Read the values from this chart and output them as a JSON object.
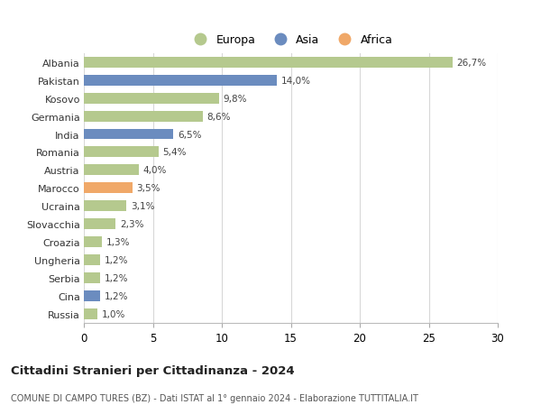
{
  "countries": [
    "Albania",
    "Pakistan",
    "Kosovo",
    "Germania",
    "India",
    "Romania",
    "Austria",
    "Marocco",
    "Ucraina",
    "Slovacchia",
    "Croazia",
    "Ungheria",
    "Serbia",
    "Cina",
    "Russia"
  ],
  "values": [
    26.7,
    14.0,
    9.8,
    8.6,
    6.5,
    5.4,
    4.0,
    3.5,
    3.1,
    2.3,
    1.3,
    1.2,
    1.2,
    1.2,
    1.0
  ],
  "labels": [
    "26,7%",
    "14,0%",
    "9,8%",
    "8,6%",
    "6,5%",
    "5,4%",
    "4,0%",
    "3,5%",
    "3,1%",
    "2,3%",
    "1,3%",
    "1,2%",
    "1,2%",
    "1,2%",
    "1,0%"
  ],
  "continents": [
    "Europa",
    "Asia",
    "Europa",
    "Europa",
    "Asia",
    "Europa",
    "Europa",
    "Africa",
    "Europa",
    "Europa",
    "Europa",
    "Europa",
    "Europa",
    "Asia",
    "Europa"
  ],
  "colors": {
    "Europa": "#b5c98e",
    "Asia": "#6b8cbf",
    "Africa": "#f0a868"
  },
  "title1": "Cittadini Stranieri per Cittadinanza - 2024",
  "title2": "COMUNE DI CAMPO TURES (BZ) - Dati ISTAT al 1° gennaio 2024 - Elaborazione TUTTITALIA.IT",
  "xlim": [
    0,
    30
  ],
  "xticks": [
    0,
    5,
    10,
    15,
    20,
    25,
    30
  ],
  "background_color": "#ffffff",
  "grid_color": "#d8d8d8"
}
